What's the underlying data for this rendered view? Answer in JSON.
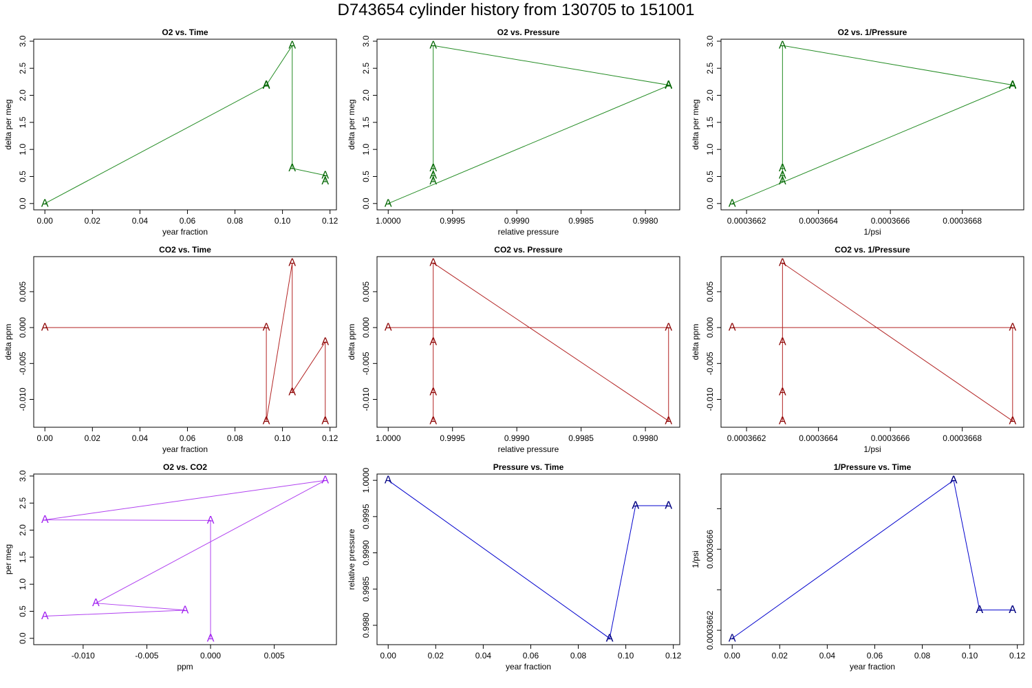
{
  "title": "D743654   cylinder history from  130705  to  151001",
  "chart_data": [
    {
      "type": "line",
      "title": "O2 vs. Time",
      "xlabel": "year fraction",
      "ylabel": "delta per meg",
      "marker": "A",
      "color": "#006400",
      "line_color": "#228b22",
      "x": [
        0,
        0.0932,
        0.0932,
        0.1041,
        0.1041,
        0.118,
        0.118
      ],
      "values": [
        0,
        2.18,
        2.19,
        2.92,
        0.65,
        0.52,
        0.41
      ],
      "xlim": [
        -0.0047,
        0.1227
      ],
      "ylim": [
        -0.117,
        3.037
      ],
      "xticks": [
        {
          "value": 0,
          "label": "0.00"
        },
        0.02,
        0.04,
        0.06,
        0.08,
        {
          "value": 0.1,
          "label": "0.10"
        },
        0.12
      ],
      "yticks": [
        {
          "value": 0,
          "label": "0.0"
        },
        0.5,
        {
          "value": 1,
          "label": "1.0"
        },
        1.5,
        {
          "value": 2,
          "label": "2.0"
        },
        2.5,
        {
          "value": 3,
          "label": "3.0"
        }
      ]
    },
    {
      "type": "line",
      "title": "O2 vs. Pressure",
      "xlabel": "relative pressure",
      "ylabel": "delta per meg",
      "marker": "A",
      "color": "#006400",
      "line_color": "#228b22",
      "x": [
        1.0,
        0.99782,
        0.99782,
        0.99965,
        0.99965,
        0.99965,
        0.99965
      ],
      "values": [
        0,
        2.18,
        2.19,
        2.92,
        0.65,
        0.52,
        0.41
      ],
      "xlim": [
        1.000087,
        0.997733
      ],
      "ylim": [
        -0.117,
        3.037
      ],
      "xticks": [
        {
          "value": 1,
          "label": "1.0000"
        },
        0.9995,
        {
          "value": 0.999,
          "label": "0.9990"
        },
        0.9985,
        {
          "value": 0.998,
          "label": "0.9980"
        }
      ],
      "yticks": [
        {
          "value": 0,
          "label": "0.0"
        },
        0.5,
        {
          "value": 1,
          "label": "1.0"
        },
        1.5,
        {
          "value": 2,
          "label": "2.0"
        },
        2.5,
        {
          "value": 3,
          "label": "3.0"
        }
      ]
    },
    {
      "type": "line",
      "title": "O2 vs. 1/Pressure",
      "xlabel": "1/psi",
      "ylabel": "delta per meg",
      "marker": "A",
      "color": "#006400",
      "line_color": "#228b22",
      "x": [
        0.00036616,
        0.00036694,
        0.00036694,
        0.0003663,
        0.0003663,
        0.0003663,
        0.0003663
      ],
      "values": [
        0,
        2.18,
        2.19,
        2.92,
        0.65,
        0.52,
        0.41
      ],
      "xlim": [
        0.000366129,
        0.000366971
      ],
      "ylim": [
        -0.117,
        3.037
      ],
      "xticks": [
        0.0003662,
        0.0003664,
        0.0003666,
        0.0003668
      ],
      "yticks": [
        {
          "value": 0,
          "label": "0.0"
        },
        0.5,
        {
          "value": 1,
          "label": "1.0"
        },
        1.5,
        {
          "value": 2,
          "label": "2.0"
        },
        2.5,
        {
          "value": 3,
          "label": "3.0"
        }
      ]
    },
    {
      "type": "line",
      "title": "CO2 vs. Time",
      "xlabel": "year fraction",
      "ylabel": "delta ppm",
      "marker": "A",
      "color": "#8b0000",
      "line_color": "#b22222",
      "x": [
        0,
        0.0932,
        0.0932,
        0.1041,
        0.1041,
        0.118,
        0.118
      ],
      "values": [
        0,
        0,
        -0.013,
        0.009,
        -0.009,
        -0.002,
        -0.013
      ],
      "xlim": [
        -0.0047,
        0.1227
      ],
      "ylim": [
        -0.01388,
        0.00988
      ],
      "xticks": [
        {
          "value": 0,
          "label": "0.00"
        },
        0.02,
        0.04,
        0.06,
        0.08,
        {
          "value": 0.1,
          "label": "0.10"
        },
        0.12
      ],
      "yticks": [
        {
          "value": -0.01,
          "label": "-0.010"
        },
        -0.005,
        {
          "value": 0,
          "label": "0.000"
        },
        0.005
      ]
    },
    {
      "type": "line",
      "title": "CO2 vs. Pressure",
      "xlabel": "relative pressure",
      "ylabel": "delta ppm",
      "marker": "A",
      "color": "#8b0000",
      "line_color": "#b22222",
      "x": [
        1.0,
        0.99782,
        0.99782,
        0.99965,
        0.99965,
        0.99965,
        0.99965
      ],
      "values": [
        0,
        0,
        -0.013,
        0.009,
        -0.009,
        -0.002,
        -0.013
      ],
      "xlim": [
        1.000087,
        0.997733
      ],
      "ylim": [
        -0.01388,
        0.00988
      ],
      "xticks": [
        {
          "value": 1,
          "label": "1.0000"
        },
        0.9995,
        {
          "value": 0.999,
          "label": "0.9990"
        },
        0.9985,
        {
          "value": 0.998,
          "label": "0.9980"
        }
      ],
      "yticks": [
        {
          "value": -0.01,
          "label": "-0.010"
        },
        -0.005,
        {
          "value": 0,
          "label": "0.000"
        },
        0.005
      ]
    },
    {
      "type": "line",
      "title": "CO2 vs. 1/Pressure",
      "xlabel": "1/psi",
      "ylabel": "delta ppm",
      "marker": "A",
      "color": "#8b0000",
      "line_color": "#b22222",
      "x": [
        0.00036616,
        0.00036694,
        0.00036694,
        0.0003663,
        0.0003663,
        0.0003663,
        0.0003663
      ],
      "values": [
        0,
        0,
        -0.013,
        0.009,
        -0.009,
        -0.002,
        -0.013
      ],
      "xlim": [
        0.000366129,
        0.000366971
      ],
      "ylim": [
        -0.01388,
        0.00988
      ],
      "xticks": [
        0.0003662,
        0.0003664,
        0.0003666,
        0.0003668
      ],
      "yticks": [
        {
          "value": -0.01,
          "label": "-0.010"
        },
        -0.005,
        {
          "value": 0,
          "label": "0.000"
        },
        0.005
      ]
    },
    {
      "type": "line",
      "title": "O2 vs. CO2",
      "xlabel": "ppm",
      "ylabel": "per meg",
      "marker": "A",
      "color": "#a020f0",
      "line_color": "#b040f0",
      "x": [
        0,
        0,
        -0.013,
        0.009,
        -0.009,
        -0.002,
        -0.013
      ],
      "values": [
        0,
        2.18,
        2.19,
        2.92,
        0.65,
        0.52,
        0.41
      ],
      "xlim": [
        -0.01388,
        0.00988
      ],
      "ylim": [
        -0.117,
        3.037
      ],
      "xticks": [
        {
          "value": -0.01,
          "label": "-0.010"
        },
        -0.005,
        {
          "value": 0,
          "label": "0.000"
        },
        0.005
      ],
      "yticks": [
        {
          "value": 0,
          "label": "0.0"
        },
        0.5,
        {
          "value": 1,
          "label": "1.0"
        },
        1.5,
        {
          "value": 2,
          "label": "2.0"
        },
        2.5,
        {
          "value": 3,
          "label": "3.0"
        }
      ]
    },
    {
      "type": "line",
      "title": "Pressure vs. Time",
      "xlabel": "year fraction",
      "ylabel": "relative pressure",
      "marker": "A",
      "color": "#000080",
      "line_color": "#0000cd",
      "x": [
        0,
        0.0932,
        0.0932,
        0.1041,
        0.1041,
        0.118,
        0.118
      ],
      "values": [
        1.0,
        0.99782,
        0.99782,
        0.99965,
        0.99965,
        0.99965,
        0.99965
      ],
      "xlim": [
        -0.0047,
        0.1227
      ],
      "ylim": [
        0.997733,
        1.000087
      ],
      "xticks": [
        {
          "value": 0,
          "label": "0.00"
        },
        0.02,
        0.04,
        0.06,
        0.08,
        {
          "value": 0.1,
          "label": "0.10"
        },
        0.12
      ],
      "yticks": [
        {
          "value": 0.998,
          "label": "0.9980"
        },
        0.9985,
        {
          "value": 0.999,
          "label": "0.9990"
        },
        0.9995,
        {
          "value": 1,
          "label": "1.0000"
        }
      ]
    },
    {
      "type": "line",
      "title": "1/Pressure vs. Time",
      "xlabel": "year fraction",
      "ylabel": "1/psi",
      "marker": "A",
      "color": "#000080",
      "line_color": "#0000cd",
      "x": [
        0,
        0.0932,
        0.0932,
        0.1041,
        0.1041,
        0.118,
        0.118
      ],
      "values": [
        0.00036616,
        0.00036694,
        0.00036694,
        0.0003663,
        0.0003663,
        0.0003663,
        0.0003663
      ],
      "xlim": [
        -0.0047,
        0.1227
      ],
      "ylim": [
        0.000366129,
        0.000366971
      ],
      "xticks": [
        {
          "value": 0,
          "label": "0.00"
        },
        0.02,
        0.04,
        0.06,
        0.08,
        {
          "value": 0.1,
          "label": "0.10"
        },
        0.12
      ],
      "yticks": [
        0.0003662,
        0.0003666
      ],
      "yticks_minor": [
        0.0003664,
        0.0003668
      ]
    }
  ]
}
